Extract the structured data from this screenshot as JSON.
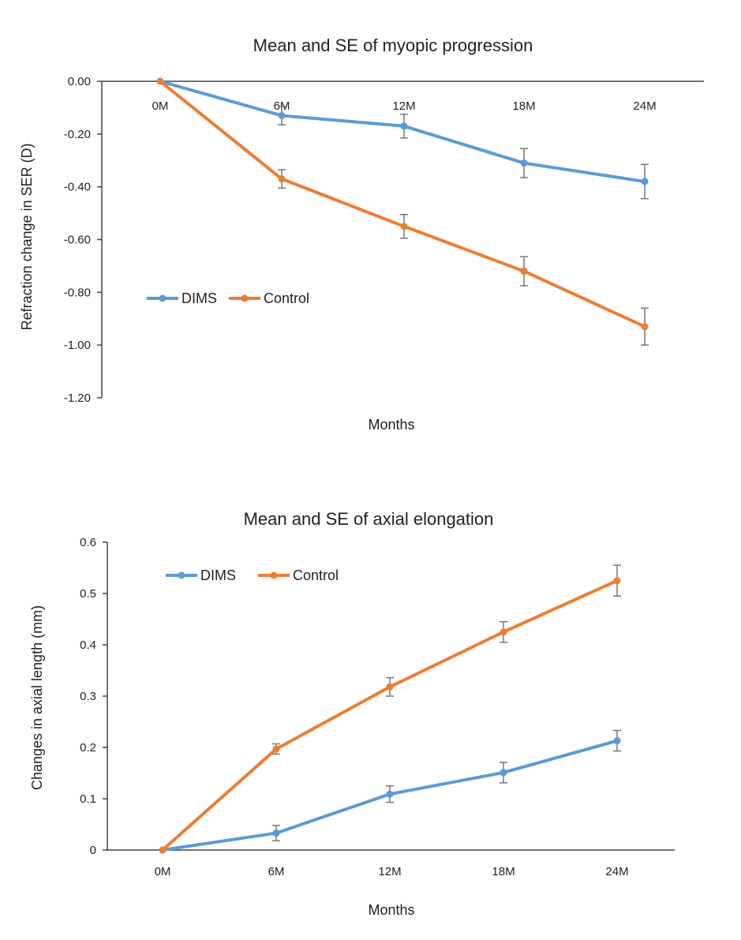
{
  "chart_data": [
    {
      "type": "line",
      "title": "Mean and SE of myopic progression",
      "xlabel": "Months",
      "ylabel": "Refraction change in SER (D)",
      "categories": [
        "0M",
        "6M",
        "12M",
        "18M",
        "24M"
      ],
      "ylim": [
        -1.2,
        0
      ],
      "yticks": [
        "0.00",
        "-0.20",
        "-0.40",
        "-0.60",
        "-0.80",
        "-1.00",
        "-1.20"
      ],
      "ytick_values": [
        0,
        -0.2,
        -0.4,
        -0.6,
        -0.8,
        -1.0,
        -1.2
      ],
      "x_axis_position": "top",
      "legend_position": "center-left",
      "grid": false,
      "series": [
        {
          "name": "DIMS",
          "color": "#5B9BD5",
          "values": [
            0,
            -0.13,
            -0.17,
            -0.31,
            -0.38
          ],
          "se": [
            0,
            0.035,
            0.045,
            0.055,
            0.065
          ]
        },
        {
          "name": "Control",
          "color": "#ED7D31",
          "values": [
            0,
            -0.37,
            -0.55,
            -0.72,
            -0.93
          ],
          "se": [
            0,
            0.035,
            0.045,
            0.055,
            0.07
          ]
        }
      ]
    },
    {
      "type": "line",
      "title": "Mean and SE of axial elongation",
      "xlabel": "Months",
      "ylabel": "Changes in axial length (mm)",
      "categories": [
        "0M",
        "6M",
        "12M",
        "18M",
        "24M"
      ],
      "ylim": [
        0,
        0.6
      ],
      "yticks": [
        "0",
        "0.1",
        "0.2",
        "0.3",
        "0.4",
        "0.5",
        "0.6"
      ],
      "ytick_values": [
        0,
        0.1,
        0.2,
        0.3,
        0.4,
        0.5,
        0.6
      ],
      "x_axis_position": "bottom",
      "legend_position": "top-left",
      "grid": false,
      "series": [
        {
          "name": "DIMS",
          "color": "#5B9BD5",
          "values": [
            0,
            0.033,
            0.109,
            0.151,
            0.213
          ],
          "se": [
            0,
            0.015,
            0.016,
            0.02,
            0.02
          ]
        },
        {
          "name": "Control",
          "color": "#ED7D31",
          "values": [
            0,
            0.197,
            0.318,
            0.425,
            0.525
          ],
          "se": [
            0,
            0.01,
            0.018,
            0.02,
            0.03
          ]
        }
      ]
    }
  ]
}
